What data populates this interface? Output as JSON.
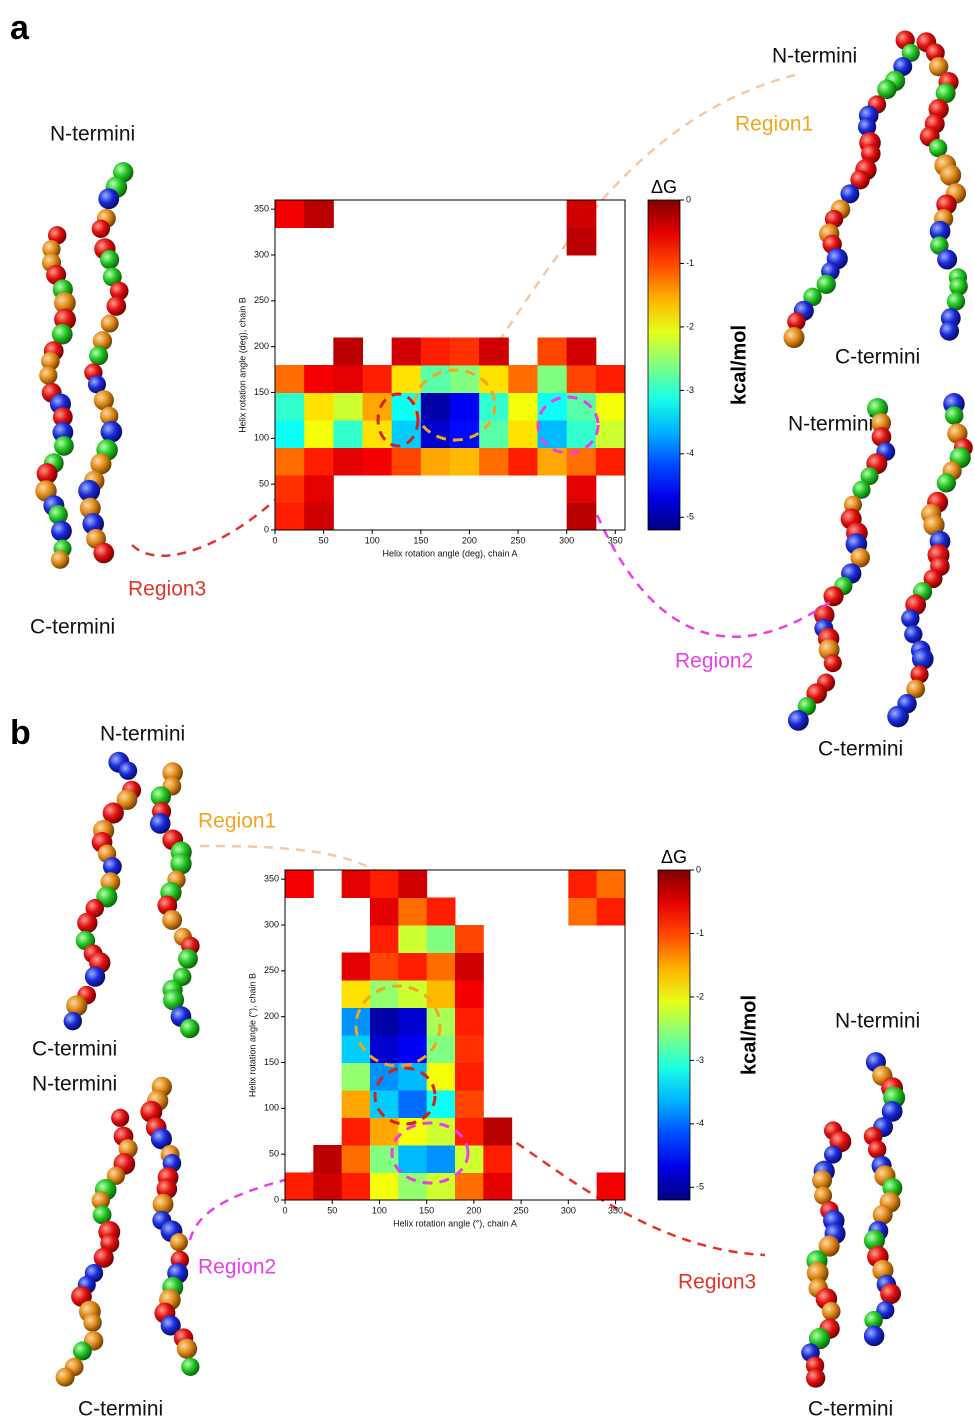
{
  "figure": {
    "panels": [
      {
        "label": "a",
        "structure_labels": [
          "N-termini",
          "C-termini",
          "N-termini",
          "C-termini",
          "N-termini",
          "C-termini"
        ],
        "region_labels": [
          {
            "text": "Region1",
            "color": "#f2a51f"
          },
          {
            "text": "Region3",
            "color": "#e3342a"
          },
          {
            "text": "Region2",
            "color": "#e83fe8"
          }
        ]
      },
      {
        "label": "b",
        "structure_labels": [
          "N-termini",
          "C-termini",
          "N-termini",
          "C-termini",
          "N-termini",
          "C-termini"
        ],
        "region_labels": [
          {
            "text": "Region1",
            "color": "#f2a51f"
          },
          {
            "text": "Region2",
            "color": "#e83fe8"
          },
          {
            "text": "Region3",
            "color": "#e3342a"
          }
        ]
      }
    ]
  },
  "chart_data": [
    {
      "type": "heatmap",
      "xlabel": "Helix rotation angle (deg), chain A",
      "ylabel": "Helix rotation angle (deg), chain B",
      "xlim": [
        0,
        360
      ],
      "ylim": [
        0,
        360
      ],
      "xticks": [
        0,
        50,
        100,
        150,
        200,
        250,
        300,
        350
      ],
      "yticks": [
        0,
        50,
        100,
        150,
        200,
        250,
        300,
        350
      ],
      "colormap": "jet",
      "colorbar": {
        "title": "ΔG",
        "label": "kcal/mol",
        "lim": [
          -5.2,
          0
        ],
        "ticks": [
          0,
          -1,
          -2,
          -3,
          -4,
          -5
        ]
      },
      "values": [
        [
          -0.8,
          -0.4,
          null,
          null,
          null,
          null,
          null,
          null,
          null,
          null,
          -0.3,
          null
        ],
        [
          -0.9,
          -0.5,
          null,
          null,
          null,
          null,
          null,
          null,
          null,
          null,
          -0.5,
          null
        ],
        [
          -1.2,
          -0.8,
          -0.5,
          -0.6,
          -1.0,
          -1.5,
          -1.6,
          -1.2,
          -0.8,
          -1.5,
          -1.2,
          -0.8
        ],
        [
          -3.2,
          -2.0,
          -3.0,
          -1.8,
          -3.5,
          -4.8,
          -4.5,
          -2.8,
          -1.8,
          -3.6,
          -3.0,
          -2.2
        ],
        [
          -3.0,
          -1.8,
          -2.2,
          -1.5,
          -3.2,
          -5.0,
          -4.6,
          -3.0,
          -2.0,
          -3.2,
          -2.8,
          -2.0
        ],
        [
          -1.2,
          -0.6,
          -0.5,
          -0.8,
          -1.8,
          -2.8,
          -2.6,
          -1.8,
          -1.2,
          -2.6,
          -1.0,
          -0.8
        ],
        [
          null,
          null,
          -0.3,
          null,
          -0.4,
          -0.8,
          -0.9,
          -0.4,
          null,
          -1.0,
          -0.4,
          null
        ],
        [
          null,
          null,
          null,
          null,
          null,
          null,
          null,
          null,
          null,
          null,
          null,
          null
        ],
        [
          null,
          null,
          null,
          null,
          null,
          null,
          null,
          null,
          null,
          null,
          null,
          null
        ],
        [
          null,
          null,
          null,
          null,
          null,
          null,
          null,
          null,
          null,
          null,
          null,
          null
        ],
        [
          null,
          null,
          null,
          null,
          null,
          null,
          null,
          null,
          null,
          null,
          -0.3,
          null
        ],
        [
          -0.6,
          -0.3,
          null,
          null,
          null,
          null,
          null,
          null,
          null,
          null,
          -0.4,
          null
        ]
      ]
    },
    {
      "type": "heatmap",
      "xlabel": "Helix rotation angle (°), chain A",
      "ylabel": "Helix rotation angle (°), chain B",
      "xlim": [
        0,
        360
      ],
      "ylim": [
        0,
        360
      ],
      "xticks": [
        0,
        50,
        100,
        150,
        200,
        250,
        300,
        350
      ],
      "yticks": [
        0,
        50,
        100,
        150,
        200,
        250,
        300,
        350
      ],
      "colormap": "jet",
      "colorbar": {
        "title": "ΔG",
        "label": "kcal/mol",
        "lim": [
          -5.2,
          0
        ],
        "ticks": [
          0,
          -1,
          -2,
          -3,
          -4,
          -5
        ]
      },
      "values": [
        [
          -0.8,
          -0.4,
          -0.8,
          -2.0,
          -2.5,
          -2.2,
          -1.2,
          -0.5,
          null,
          null,
          null,
          -0.6
        ],
        [
          null,
          -0.3,
          -1.2,
          -2.6,
          -3.6,
          -3.8,
          -2.2,
          -0.8,
          null,
          null,
          null,
          null
        ],
        [
          null,
          null,
          -0.8,
          -1.5,
          -2.0,
          -2.2,
          -0.8,
          -0.3,
          null,
          null,
          null,
          null
        ],
        [
          null,
          null,
          -1.5,
          -3.5,
          -4.0,
          -3.2,
          -1.0,
          null,
          null,
          null,
          null,
          null
        ],
        [
          null,
          null,
          -2.5,
          -3.8,
          -3.6,
          -2.0,
          -0.8,
          null,
          null,
          null,
          null,
          null
        ],
        [
          null,
          null,
          -3.5,
          -4.8,
          -4.6,
          -2.6,
          -0.9,
          null,
          null,
          null,
          null,
          null
        ],
        [
          null,
          null,
          -3.8,
          -5.0,
          -4.8,
          -2.4,
          -0.8,
          null,
          null,
          null,
          null,
          null
        ],
        [
          null,
          null,
          -1.8,
          -2.5,
          -2.2,
          -1.6,
          -0.6,
          null,
          null,
          null,
          null,
          null
        ],
        [
          null,
          null,
          -0.5,
          -1.0,
          -0.8,
          -1.2,
          -0.4,
          null,
          null,
          null,
          null,
          null
        ],
        [
          null,
          null,
          null,
          -0.8,
          -2.2,
          -2.6,
          -1.0,
          null,
          null,
          null,
          null,
          null
        ],
        [
          null,
          null,
          null,
          -0.5,
          -1.2,
          -0.8,
          null,
          null,
          null,
          null,
          -1.2,
          -0.8
        ],
        [
          -0.6,
          null,
          -0.5,
          -0.8,
          -0.4,
          null,
          null,
          null,
          null,
          null,
          -0.8,
          -1.2
        ]
      ]
    }
  ]
}
